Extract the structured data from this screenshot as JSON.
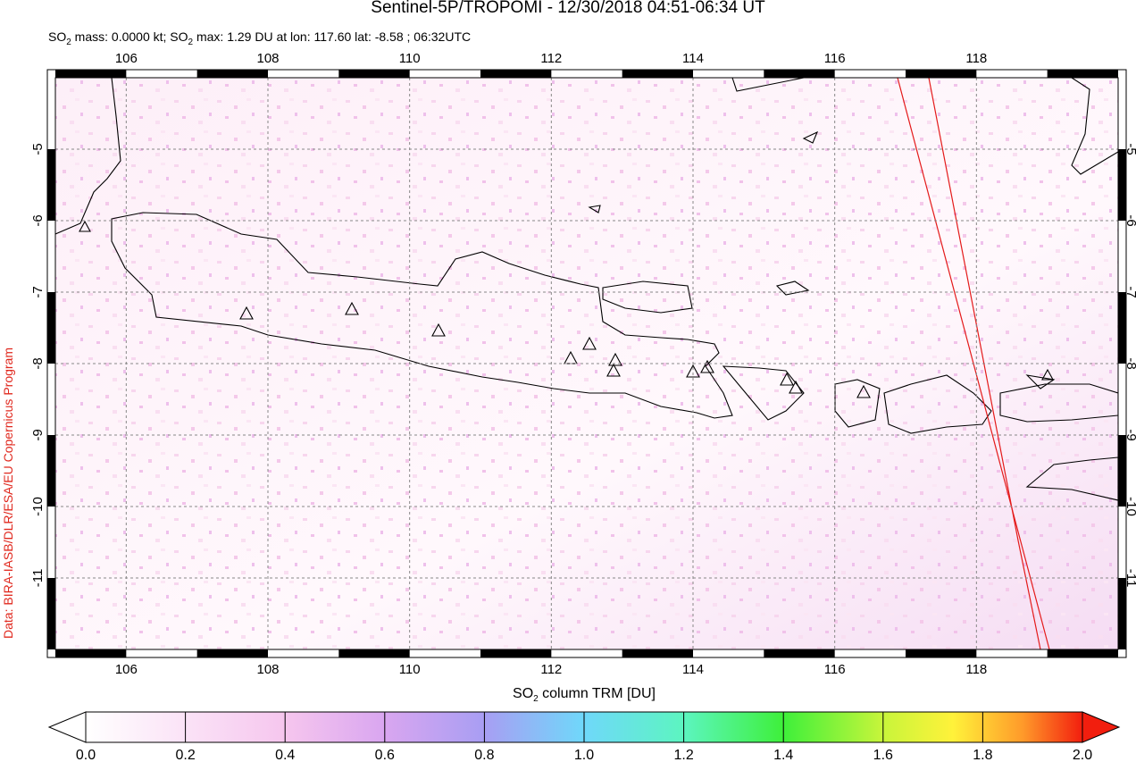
{
  "title": "Sentinel-5P/TROPOMI - 12/30/2018 04:51-06:34 UT",
  "subtitle": [
    "SO",
    "2",
    " mass: 0.0000 kt; SO",
    "2",
    " max: 1.29 DU at lon: 117.60 lat: -8.58 ; 06:32UTC"
  ],
  "map": {
    "lonlim": [
      105,
      120
    ],
    "latlim": [
      -12,
      -4
    ],
    "lon_ticks": [
      106,
      108,
      110,
      112,
      114,
      116,
      118
    ],
    "lat_ticks": [
      -5,
      -6,
      -7,
      -8,
      -9,
      -10,
      -11
    ]
  },
  "colorbar": {
    "label": [
      "SO",
      "2",
      " column TRM [DU]"
    ],
    "range": [
      0,
      2
    ],
    "ticks": [
      {
        "value": 0,
        "label": "0.0"
      },
      {
        "value": 0.2,
        "label": "0.2"
      },
      {
        "value": 0.4,
        "label": "0.4"
      },
      {
        "value": 0.6,
        "label": "0.6"
      },
      {
        "value": 0.8,
        "label": "0.8"
      },
      {
        "value": 1,
        "label": "1.0"
      },
      {
        "value": 1.2,
        "label": "1.2"
      },
      {
        "value": 1.4,
        "label": "1.4"
      },
      {
        "value": 1.6,
        "label": "1.6"
      },
      {
        "value": 1.8,
        "label": "1.8"
      },
      {
        "value": 2,
        "label": "2.0"
      }
    ]
  },
  "credit": "Data: BIRA-IASB/DLR/ESA/EU Copernicus Program"
}
